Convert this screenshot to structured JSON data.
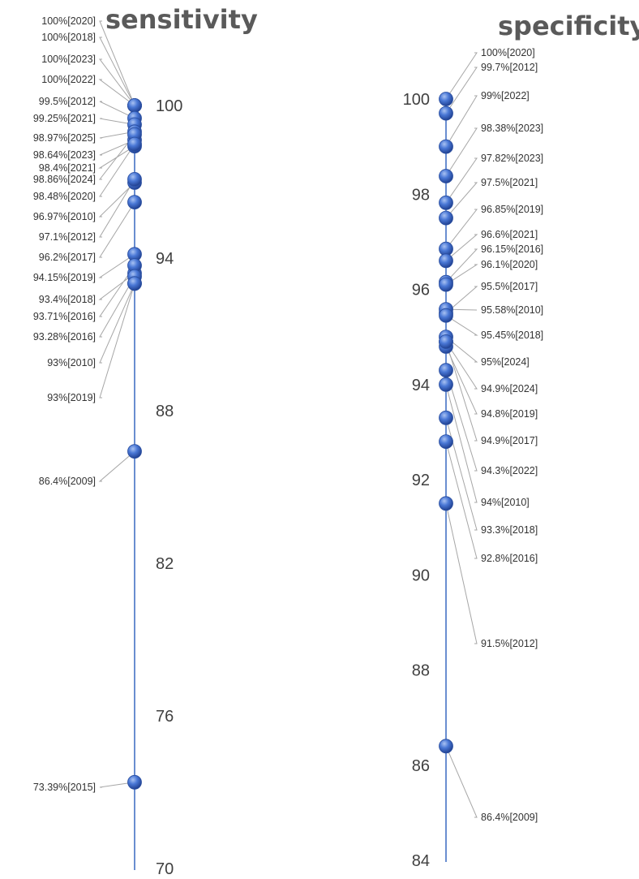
{
  "chart_data": [
    {
      "type": "scatter",
      "title": "sensitivity",
      "ylim": [
        70,
        100
      ],
      "yticks": [
        "100",
        "94",
        "88",
        "82",
        "76",
        "70"
      ],
      "ytick_values": [
        100,
        94,
        88,
        82,
        76,
        70
      ],
      "point_color": "#3a63c8",
      "axis_color": "#4472c4",
      "points": [
        {
          "value": 100,
          "label": "100%[2020]"
        },
        {
          "value": 100,
          "label": "100%[2018]"
        },
        {
          "value": 100,
          "label": "100%[2023]"
        },
        {
          "value": 100,
          "label": "100%[2022]"
        },
        {
          "value": 99.5,
          "label": "99.5%[2012]"
        },
        {
          "value": 99.25,
          "label": "99.25%[2021]"
        },
        {
          "value": 98.97,
          "label": "98.97%[2025]"
        },
        {
          "value": 98.64,
          "label": "98.64%[2023]"
        },
        {
          "value": 98.4,
          "label": "98.4%[2021]"
        },
        {
          "value": 98.86,
          "label": "98.86%[2024]"
        },
        {
          "value": 98.48,
          "label": "98.48%[2020]"
        },
        {
          "value": 96.97,
          "label": "96.97%[2010]"
        },
        {
          "value": 97.1,
          "label": "97.1%[2012]"
        },
        {
          "value": 96.2,
          "label": "96.2%[2017]"
        },
        {
          "value": 94.15,
          "label": "94.15%[2019]"
        },
        {
          "value": 93.4,
          "label": "93.4%[2018]"
        },
        {
          "value": 93.71,
          "label": "93.71%[2016]"
        },
        {
          "value": 93.28,
          "label": "93.28%[2016]"
        },
        {
          "value": 93,
          "label": "93%[2010]"
        },
        {
          "value": 93,
          "label": "93%[2019]"
        },
        {
          "value": 86.4,
          "label": "86.4%[2009]"
        },
        {
          "value": 73.39,
          "label": "73.39%[2015]"
        }
      ]
    },
    {
      "type": "scatter",
      "title": "specificity",
      "ylim": [
        84,
        100
      ],
      "yticks": [
        "100",
        "98",
        "96",
        "94",
        "92",
        "90",
        "88",
        "86",
        "84"
      ],
      "ytick_values": [
        100,
        98,
        96,
        94,
        92,
        90,
        88,
        86,
        84
      ],
      "point_color": "#3a63c8",
      "axis_color": "#4472c4",
      "points": [
        {
          "value": 100,
          "label": "100%[2020]"
        },
        {
          "value": 99.7,
          "label": "99.7%[2012]"
        },
        {
          "value": 99,
          "label": "99%[2022]"
        },
        {
          "value": 98.38,
          "label": "98.38%[2023]"
        },
        {
          "value": 97.82,
          "label": "97.82%[2023]"
        },
        {
          "value": 97.5,
          "label": "97.5%[2021]"
        },
        {
          "value": 96.85,
          "label": "96.85%[2019]"
        },
        {
          "value": 96.6,
          "label": "96.6%[2021]"
        },
        {
          "value": 96.15,
          "label": "96.15%[2016]"
        },
        {
          "value": 96.1,
          "label": "96.1%[2020]"
        },
        {
          "value": 95.5,
          "label": "95.5%[2017]"
        },
        {
          "value": 95.58,
          "label": "95.58%[2010]"
        },
        {
          "value": 95.45,
          "label": "95.45%[2018]"
        },
        {
          "value": 95,
          "label": "95%[2024]"
        },
        {
          "value": 94.9,
          "label": "94.9%[2024]"
        },
        {
          "value": 94.8,
          "label": "94.8%[2019]"
        },
        {
          "value": 94.9,
          "label": "94.9%[2017]"
        },
        {
          "value": 94.3,
          "label": "94.3%[2022]"
        },
        {
          "value": 94,
          "label": "94%[2010]"
        },
        {
          "value": 93.3,
          "label": "93.3%[2018]"
        },
        {
          "value": 92.8,
          "label": "92.8%[2016]"
        },
        {
          "value": 91.5,
          "label": "91.5%[2012]"
        },
        {
          "value": 86.4,
          "label": "86.4%[2009]"
        }
      ]
    }
  ]
}
